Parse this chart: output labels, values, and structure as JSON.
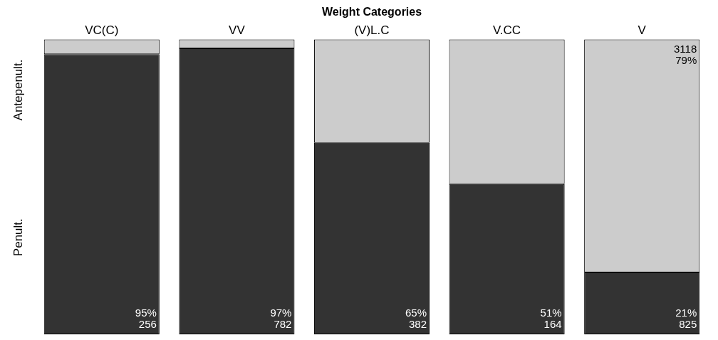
{
  "chart_data": {
    "type": "bar",
    "title": "Weight Categories",
    "categories": [
      "VC(C)",
      "VV",
      "(V)L.C",
      "V.CC",
      "V"
    ],
    "stacked": true,
    "ylim": [
      0,
      100
    ],
    "tick_labels": "x",
    "legend": false,
    "grid": false,
    "series": [
      {
        "name": "Penult.",
        "color": "#333333",
        "values": [
          95,
          97,
          65,
          51,
          21
        ],
        "value_labels": [
          "95%\n256",
          "97%\n782",
          "65%\n382",
          "51%\n164",
          "21%\n825"
        ]
      },
      {
        "name": "Antepenult.",
        "color": "#cccccc",
        "values": [
          5,
          3,
          35,
          49,
          79
        ],
        "value_labels": [
          null,
          null,
          null,
          null,
          "3118\n79%"
        ]
      }
    ]
  }
}
